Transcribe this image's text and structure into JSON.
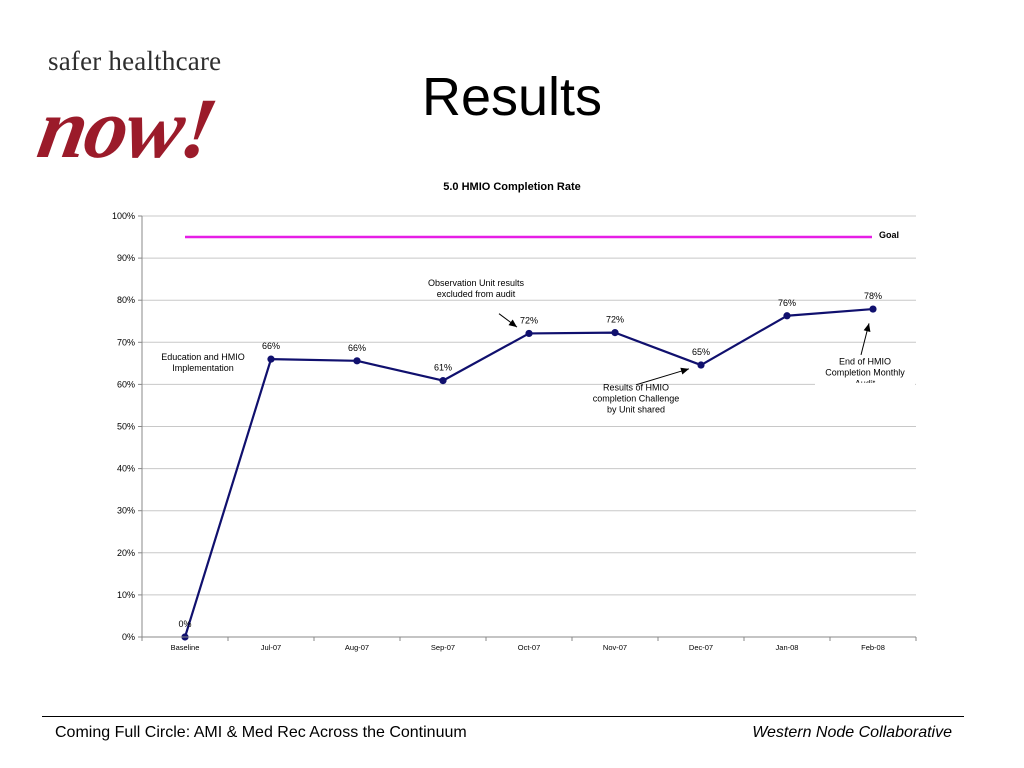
{
  "logo": {
    "tagline": "safer healthcare",
    "word": "now!"
  },
  "page_title": "Results",
  "chart_data": {
    "type": "line",
    "title": "5.0 HMIO Completion Rate",
    "xlabel": "",
    "ylabel": "",
    "ylim": [
      0,
      100
    ],
    "yticks": [
      "0%",
      "10%",
      "20%",
      "30%",
      "40%",
      "50%",
      "60%",
      "70%",
      "80%",
      "90%",
      "100%"
    ],
    "categories": [
      "Baseline",
      "Jul-07",
      "Aug-07",
      "Sep-07",
      "Oct-07",
      "Nov-07",
      "Dec-07",
      "Jan-08",
      "Feb-08"
    ],
    "series": [
      {
        "values": [
          0,
          66,
          65.6,
          60.9,
          72.1,
          72.3,
          64.6,
          76.3,
          77.9
        ],
        "labels": [
          "0%",
          "66%",
          "66%",
          "61%",
          "72%",
          "72%",
          "65%",
          "76%",
          "78%"
        ],
        "color": "#10106e"
      }
    ],
    "goal": {
      "value": 95,
      "label": "Goal",
      "color": "#e61ee6"
    },
    "grid": true,
    "annotations": [
      {
        "text": [
          "Education  and HMIO",
          "Implementation"
        ],
        "category": "Jul-07"
      },
      {
        "text": [
          "Observation Unit results",
          "excluded from audit"
        ],
        "category": "Oct-07"
      },
      {
        "text": [
          "Results of HMIO",
          "completion Challenge",
          "by Unit shared"
        ],
        "category": "Dec-07"
      },
      {
        "text": [
          "End of HMIO",
          "Completion Monthly",
          "Audit"
        ],
        "category": "Feb-08"
      }
    ]
  },
  "footer": {
    "left": "Coming Full Circle:  AMI & Med Rec Across the Continuum",
    "right": "Western Node Collaborative"
  }
}
